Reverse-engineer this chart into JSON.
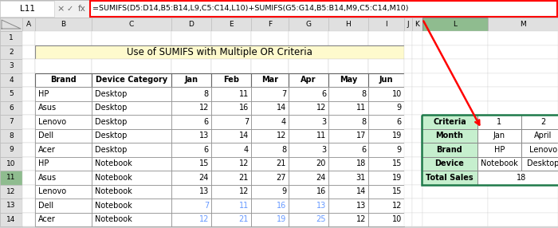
{
  "title": "Use of SUMIFS with Multiple OR Criteria",
  "formula_bar_text": "=SUMIFS(D5:D14,B5:B14,L9,C5:C14,L10)+SUMIFS(G5:G14,B5:B14,M9,C5:C14,M10)",
  "cell_ref": "L11",
  "col_headers": [
    "Brand",
    "Device Category",
    "Jan",
    "Feb",
    "Mar",
    "Apr",
    "May",
    "Jun"
  ],
  "main_data": [
    [
      "HP",
      "Desktop",
      8,
      11,
      7,
      6,
      8,
      10
    ],
    [
      "Asus",
      "Desktop",
      12,
      16,
      14,
      12,
      11,
      9
    ],
    [
      "Lenovo",
      "Desktop",
      6,
      7,
      4,
      3,
      8,
      6
    ],
    [
      "Dell",
      "Desktop",
      13,
      14,
      12,
      11,
      17,
      19
    ],
    [
      "Acer",
      "Desktop",
      6,
      4,
      8,
      3,
      6,
      9
    ],
    [
      "HP",
      "Notebook",
      15,
      12,
      21,
      20,
      18,
      15
    ],
    [
      "Asus",
      "Notebook",
      24,
      21,
      27,
      24,
      31,
      19
    ],
    [
      "Lenovo",
      "Notebook",
      13,
      12,
      9,
      16,
      14,
      15
    ],
    [
      "Dell",
      "Notebook",
      7,
      11,
      16,
      13,
      13,
      12
    ],
    [
      "Acer",
      "Notebook",
      12,
      21,
      19,
      25,
      12,
      10
    ]
  ],
  "side_rows": [
    "Criteria",
    "Month",
    "Brand",
    "Device",
    "Total Sales"
  ],
  "side_col1": [
    "1",
    "Jan",
    "HP",
    "Notebook",
    "18"
  ],
  "side_col2": [
    "2",
    "April",
    "Lenovo",
    "Desktop",
    ""
  ],
  "title_bg": "#FEFACD",
  "side_header_bg": "#C6EFCE",
  "formula_border": "#FF0000",
  "col_header_selected_bg": "#8FBC8F",
  "row_header_selected_bg": "#8FBC8F",
  "col_header_bg": "#E0E0E0",
  "row_header_bg": "#E0E0E0",
  "side_border_color": "#1F7A4A",
  "blue_text_color": "#6699FF",
  "watermark_color": "#BBCCEE"
}
